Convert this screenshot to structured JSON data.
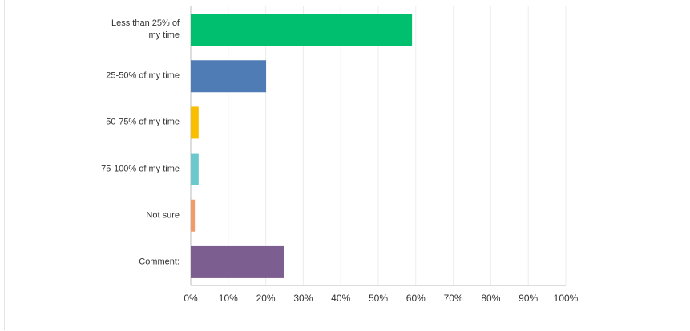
{
  "chart_data": {
    "type": "bar",
    "orientation": "horizontal",
    "categories": [
      "Less than 25% of my time",
      "25-50% of my time",
      "50-75% of my time",
      "75-100% of my time",
      "Not sure",
      "Comment:"
    ],
    "values": [
      59.0,
      20.1,
      2.1,
      2.1,
      1.1,
      25.0
    ],
    "colors": [
      "#00bf6f",
      "#507cb6",
      "#f9be00",
      "#6bc8cd",
      "#f19b6b",
      "#7d5e90"
    ],
    "xlim": [
      0,
      100
    ],
    "xticks": [
      {
        "value": 0,
        "label": "0%"
      },
      {
        "value": 10,
        "label": "10%"
      },
      {
        "value": 20,
        "label": "20%"
      },
      {
        "value": 30,
        "label": "30%"
      },
      {
        "value": 40,
        "label": "40%"
      },
      {
        "value": 50,
        "label": "50%"
      },
      {
        "value": 60,
        "label": "60%"
      },
      {
        "value": 70,
        "label": "70%"
      },
      {
        "value": 80,
        "label": "80%"
      },
      {
        "value": 90,
        "label": "90%"
      },
      {
        "value": 100,
        "label": "100%"
      }
    ],
    "grid": true
  }
}
